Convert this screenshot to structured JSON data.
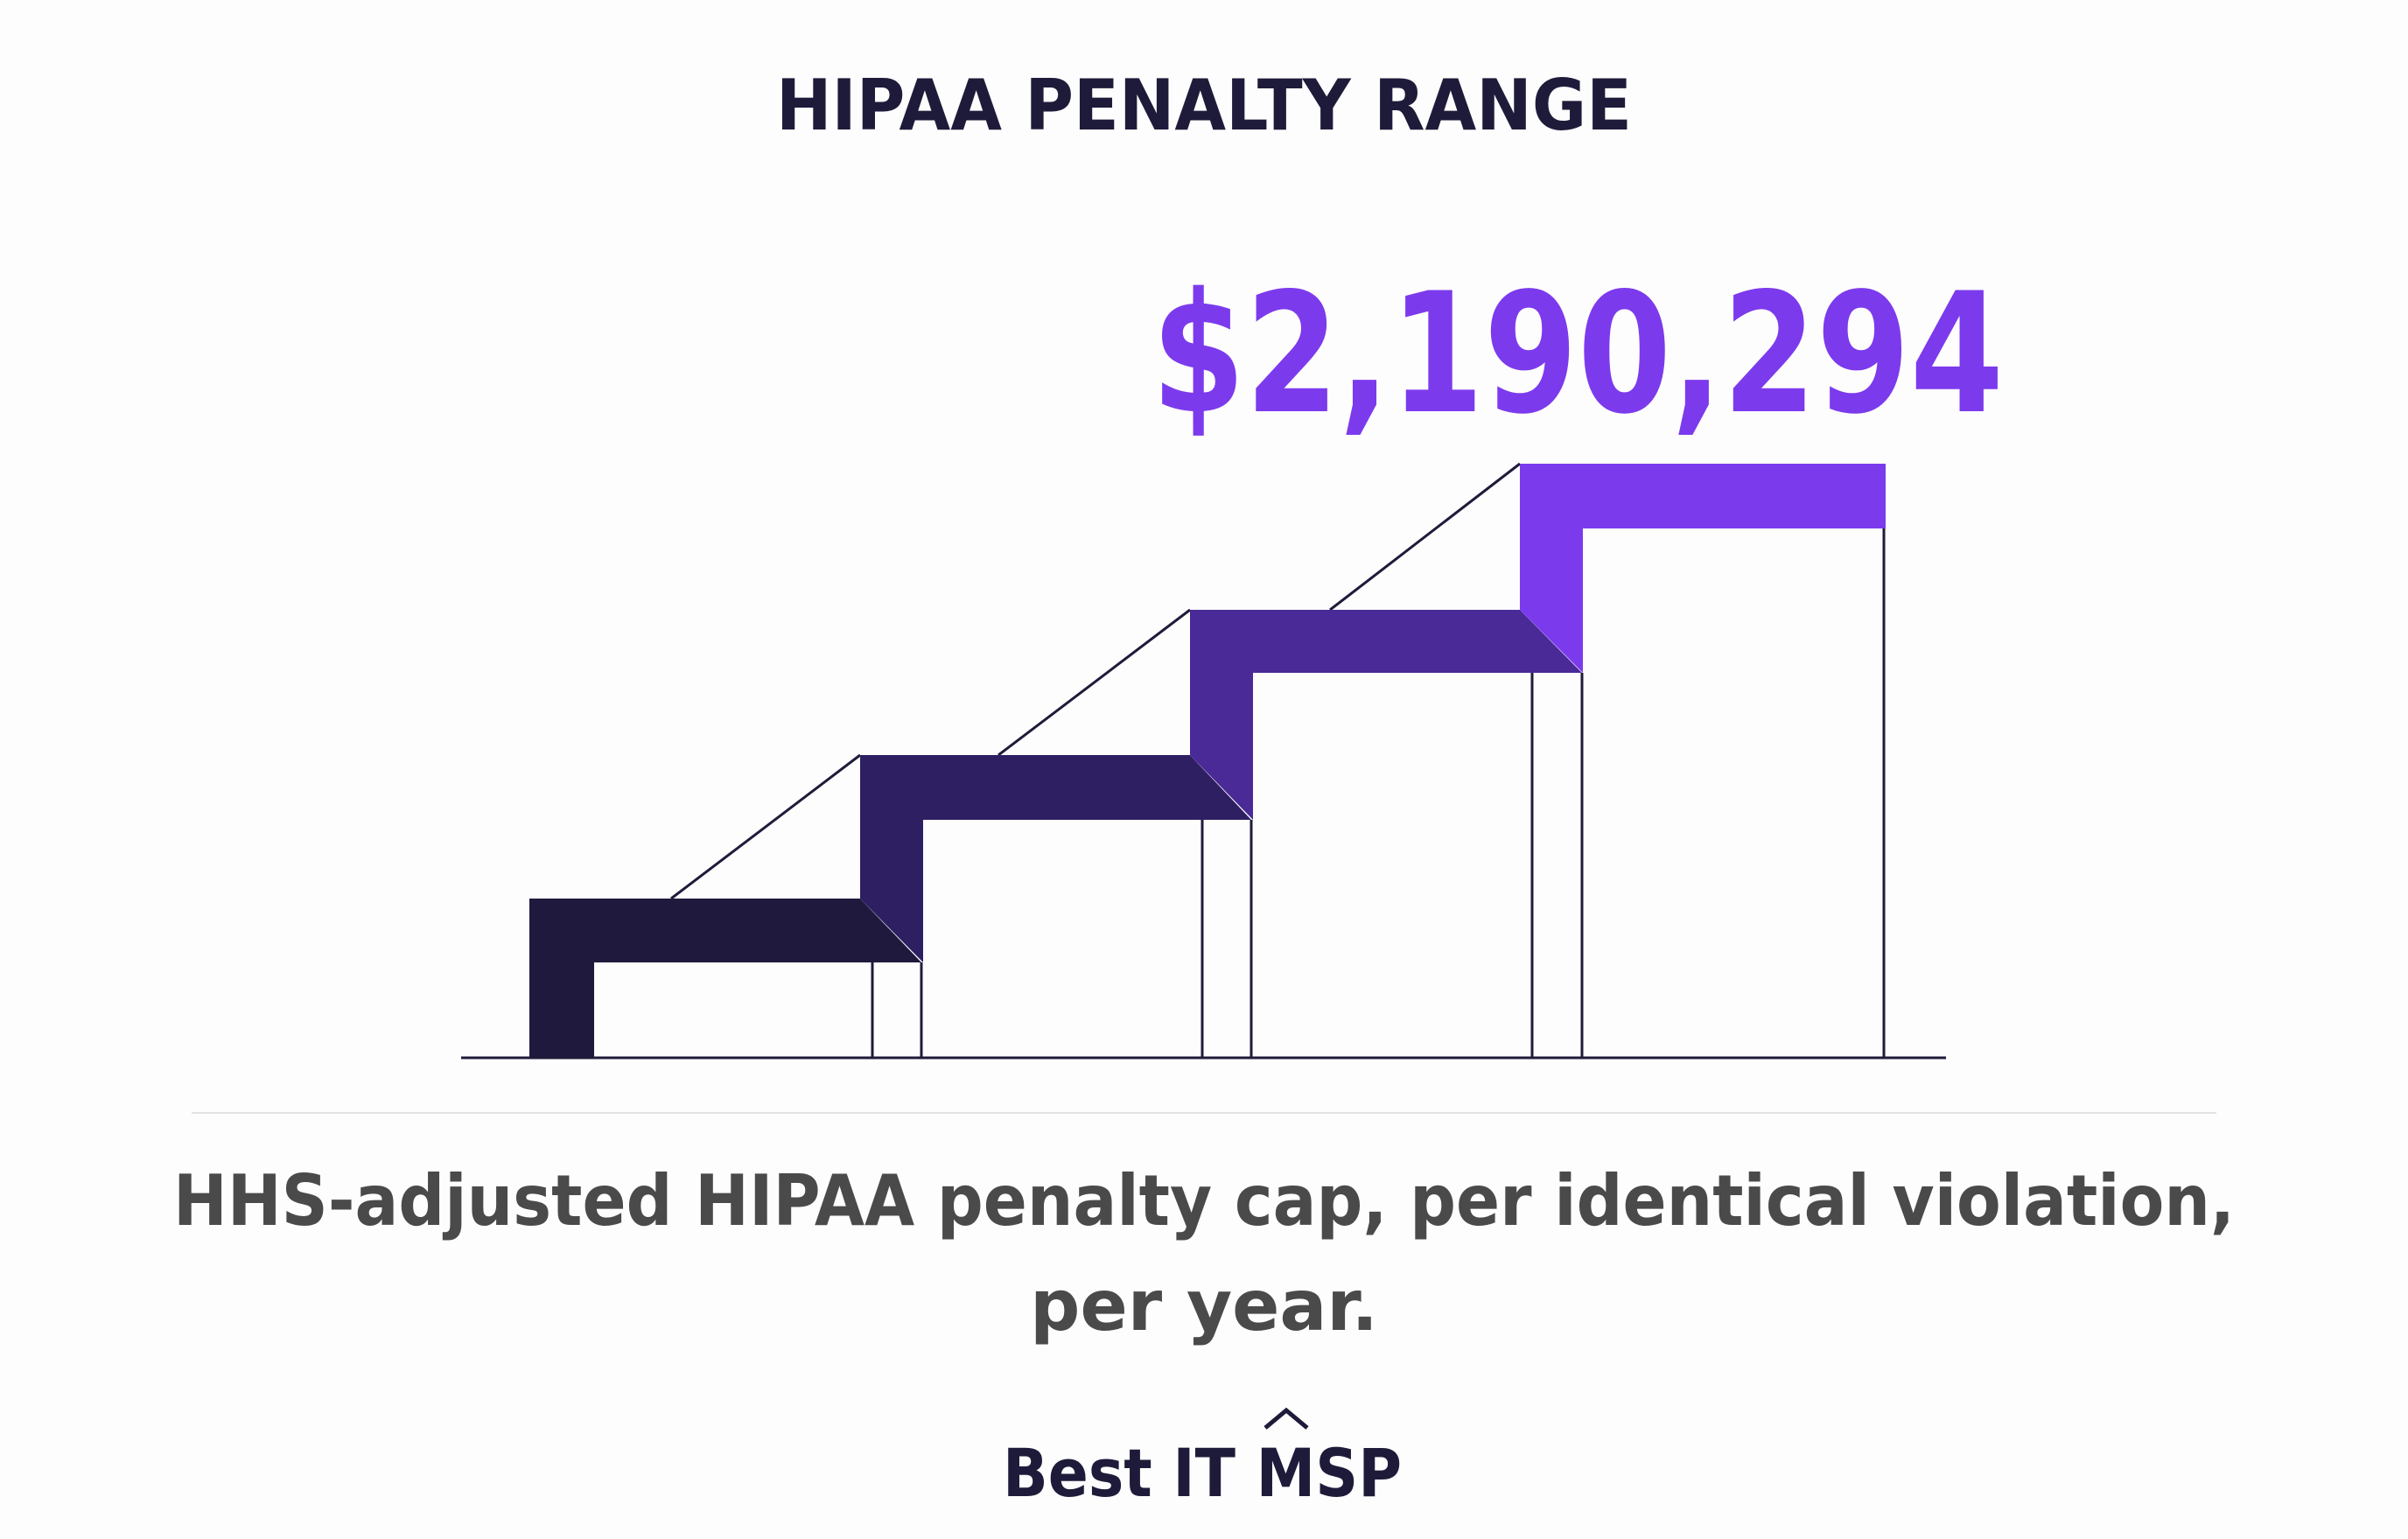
{
  "title": "HIPAA PENALTY RANGE",
  "highlight": "$2,190,294",
  "caption": [
    "HHS-adjusted HIPAA penalty cap, per identical violation,",
    "per year."
  ],
  "brand": "Best IT MSP"
}
